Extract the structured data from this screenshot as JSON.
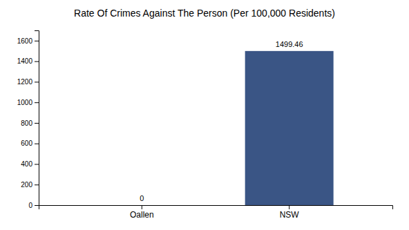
{
  "chart_data": {
    "type": "bar",
    "title": "Rate Of Crimes Against The Person (Per 100,000 Residents)",
    "categories": [
      "Oallen",
      "NSW"
    ],
    "values": [
      0,
      1499.46
    ],
    "colors": [
      "#3a5585",
      "#3a5585"
    ],
    "ylim": [
      0,
      1700
    ],
    "yticks": [
      0,
      200,
      400,
      600,
      800,
      1000,
      1200,
      1400,
      1600
    ],
    "grid": false,
    "data_labels": true
  }
}
